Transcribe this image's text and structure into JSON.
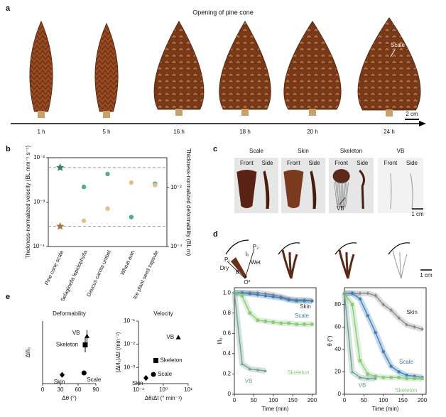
{
  "panels": {
    "a": {
      "letter": "a",
      "title": "Opening of pine cone",
      "times": [
        "1 h",
        "5 h",
        "16 h",
        "18 h",
        "20 h",
        "24 h"
      ],
      "scale_label": "Scale",
      "scale_bar": "2 cm"
    },
    "b": {
      "letter": "b"
    },
    "c": {
      "letter": "c",
      "columns": [
        "Scale",
        "Skin",
        "Skeleton",
        "VB"
      ],
      "front": "Front",
      "side": "Side",
      "vb_label": "VB",
      "scale_bar": "1 cm"
    },
    "d": {
      "letter": "d",
      "diagram_labels": [
        "P₁",
        "P₂",
        "Dry",
        "Wet",
        "l₀",
        "θ",
        "O*"
      ],
      "scale_bar": "1 cm"
    },
    "e": {
      "letter": "e"
    }
  },
  "chart_data": [
    {
      "type": "dot",
      "categories": [
        "Pine cone scale",
        "Selaginella lepidophylla",
        "Daucus carota umbel",
        "Wheat awn",
        "Ice plant seed capsule"
      ],
      "y_label": "Thickness-normalized velocity (BL mm⁻¹ s⁻¹)",
      "y2_label": "Thickness-normalized deformability (BL m)",
      "ylog": true,
      "ylim": [
        0.0001,
        0.01
      ],
      "yticks": [
        {
          "value": 0.0001,
          "label": "10⁻⁴"
        },
        {
          "value": 0.001,
          "label": "10⁻³"
        },
        {
          "value": 0.01,
          "label": "10⁻²"
        }
      ],
      "y2log": true,
      "y2lim": [
        0.0001,
        0.1
      ],
      "y2ticks": [
        {
          "value": 0.0001,
          "label": "10⁻⁴"
        },
        {
          "value": 0.01,
          "label": "10⁻²"
        }
      ],
      "first_marker": "star",
      "reference_lines": true,
      "series": [
        {
          "color": "#5aa88f",
          "values": [
            0.006,
            0.0022,
            0.0043,
            0.00046,
            0.0026
          ]
        },
        {
          "color": "#e2bf8a",
          "axis": "y2",
          "values": [
            0.00048,
            0.00074,
            0.0019,
            0.0145,
            0.012
          ]
        }
      ]
    },
    {
      "type": "scatter",
      "title": "Deformability",
      "x_label": "Δθ (°)",
      "y_label": "Δl/l₀",
      "xlim": [
        0,
        90
      ],
      "xticks": [
        0,
        30,
        60,
        90
      ],
      "ylim": [
        0,
        0.5
      ],
      "yticks": [],
      "series": [
        {
          "name": "VB",
          "marker": "triangle",
          "x": [
            75
          ],
          "values": [
            0.38
          ],
          "errors": [
            0.05
          ]
        },
        {
          "name": "Skeleton",
          "marker": "square",
          "x": [
            72
          ],
          "values": [
            0.31
          ],
          "errors": [
            0.06
          ]
        },
        {
          "name": "Skin",
          "marker": "diamond",
          "x": [
            33
          ],
          "values": [
            0.07
          ]
        },
        {
          "name": "Scale",
          "marker": "circle",
          "x": [
            70
          ],
          "values": [
            0.085
          ]
        }
      ]
    },
    {
      "type": "scatter",
      "title": "Velocity",
      "x_label": "Δθ/Δt (° min⁻¹)",
      "y_label": "(Δl/l₀)/Δt (min⁻¹)",
      "xlog": true,
      "xlim": [
        0.1,
        10
      ],
      "xticks": [
        {
          "value": 0.1,
          "label": "10⁻¹"
        },
        {
          "value": 1,
          "label": "10⁰"
        },
        {
          "value": 10,
          "label": "10¹"
        }
      ],
      "ylog": true,
      "ylim": [
        0.0002,
        0.1
      ],
      "yticks": [
        {
          "value": 0.001,
          "label": "10⁻³"
        },
        {
          "value": 0.01,
          "label": "10⁻²"
        },
        {
          "value": 0.1,
          "label": "10⁻¹"
        }
      ],
      "series": [
        {
          "name": "VB",
          "marker": "triangle",
          "x": [
            4
          ],
          "values": [
            0.02
          ]
        },
        {
          "name": "Skeleton",
          "marker": "square",
          "x": [
            0.5
          ],
          "values": [
            0.002
          ]
        },
        {
          "name": "Scale",
          "marker": "circle",
          "x": [
            0.4
          ],
          "values": [
            0.0005
          ]
        },
        {
          "name": "Skin",
          "marker": "diamond",
          "x": [
            0.2
          ],
          "values": [
            0.00035
          ]
        }
      ]
    },
    {
      "type": "line",
      "x_label": "Time (min)",
      "y_label": "l/l₀",
      "x": [
        0,
        20,
        40,
        60,
        80,
        100,
        120,
        140,
        160,
        180,
        200
      ],
      "xlim": [
        0,
        210
      ],
      "xticks": [
        0,
        50,
        100,
        150,
        200
      ],
      "ylim": [
        0,
        1.05
      ],
      "yticks": [
        0,
        0.2,
        0.4,
        0.6,
        0.8,
        {
          "value": 1,
          "label": "1.0"
        }
      ],
      "series": [
        {
          "name": "Skin",
          "color": "#8a8a8a",
          "values": [
            1.0,
            1.0,
            1.0,
            1.0,
            0.99,
            0.98,
            0.96,
            0.94,
            0.93,
            0.93,
            0.92
          ]
        },
        {
          "name": "Scale",
          "color": "#3f7fb8",
          "values": [
            1.0,
            1.0,
            0.99,
            0.98,
            0.97,
            0.96,
            0.95,
            0.93,
            0.92,
            0.92,
            0.92
          ]
        },
        {
          "name": "Skeleton",
          "color": "#8cc97d",
          "values": [
            1.0,
            0.97,
            0.8,
            0.73,
            0.72,
            0.71,
            0.7,
            0.7,
            0.69,
            0.69,
            0.69
          ]
        },
        {
          "name": "VB",
          "color": "#6f9f95",
          "values": [
            1.0,
            0.3,
            0.25,
            0.24,
            0.23,
            null,
            null,
            null,
            null,
            null,
            null
          ]
        }
      ]
    },
    {
      "type": "line",
      "x_label": "Time (min)",
      "y_label": "θ (°)",
      "x": [
        0,
        20,
        40,
        60,
        80,
        100,
        120,
        140,
        160,
        180,
        200
      ],
      "xlim": [
        0,
        210
      ],
      "xticks": [
        0,
        50,
        100,
        150,
        200
      ],
      "ylim": [
        0,
        95
      ],
      "yticks": [
        0,
        20,
        40,
        60,
        80
      ],
      "series": [
        {
          "name": "Skin",
          "color": "#8a8a8a",
          "values": [
            90,
            90,
            90,
            90,
            88,
            80,
            75,
            68,
            62,
            60,
            58
          ]
        },
        {
          "name": "Scale",
          "color": "#3f7fb8",
          "values": [
            90,
            90,
            85,
            70,
            55,
            38,
            25,
            20,
            17,
            16,
            15
          ]
        },
        {
          "name": "Skeleton",
          "color": "#8cc97d",
          "values": [
            90,
            80,
            30,
            18,
            16,
            15,
            15,
            15,
            14,
            14,
            14
          ]
        },
        {
          "name": "VB",
          "color": "#6f9f95",
          "values": [
            90,
            20,
            15,
            14,
            14,
            null,
            null,
            null,
            null,
            null,
            null
          ]
        }
      ]
    }
  ]
}
